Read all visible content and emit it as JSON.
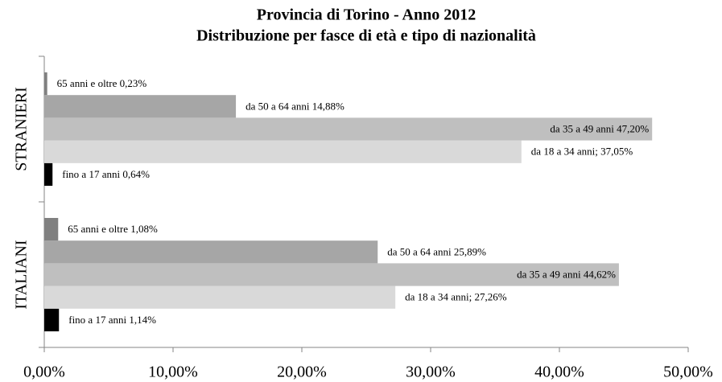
{
  "chart_data": {
    "type": "bar",
    "orientation": "horizontal",
    "title": [
      "Provincia di Torino - Anno 2012",
      "Distribuzione per fasce di età e tipo di nazionalità"
    ],
    "categories": [
      "STRANIERI",
      "ITALIANI"
    ],
    "series": [
      {
        "color": "#000000",
        "values": [
          0.64,
          1.14
        ],
        "value_labels": [
          "fino a 17 anni 0,64%",
          "fino a 17 anni 1,14%"
        ]
      },
      {
        "color": "#d9d9d9",
        "values": [
          37.05,
          27.26
        ],
        "value_labels": [
          "da 18 a 34 anni; 37,05%",
          "da 18 a 34 anni; 27,26%"
        ]
      },
      {
        "color": "#bfbfbf",
        "values": [
          47.2,
          44.62
        ],
        "value_labels": [
          "da 35 a 49 anni 47,20%",
          "da 35 a 49 anni 44,62%"
        ]
      },
      {
        "color": "#a6a6a6",
        "values": [
          14.88,
          25.89
        ],
        "value_labels": [
          "da 50 a 64 anni 14,88%",
          "da 50 a 64 anni 25,89%"
        ]
      },
      {
        "color": "#808080",
        "values": [
          0.23,
          1.08
        ],
        "value_labels": [
          "65 anni e oltre 0,23%",
          "65 anni e oltre 1,08%"
        ]
      }
    ],
    "xlim": [
      0,
      50
    ],
    "xticks": [
      {
        "value": 0,
        "label": "0,00%"
      },
      {
        "value": 10,
        "label": "10,00%"
      },
      {
        "value": 20,
        "label": "20,00%"
      },
      {
        "value": 30,
        "label": "30,00%"
      },
      {
        "value": 40,
        "label": "40,00%"
      },
      {
        "value": 50,
        "label": "50,00%"
      }
    ],
    "grid": false
  }
}
